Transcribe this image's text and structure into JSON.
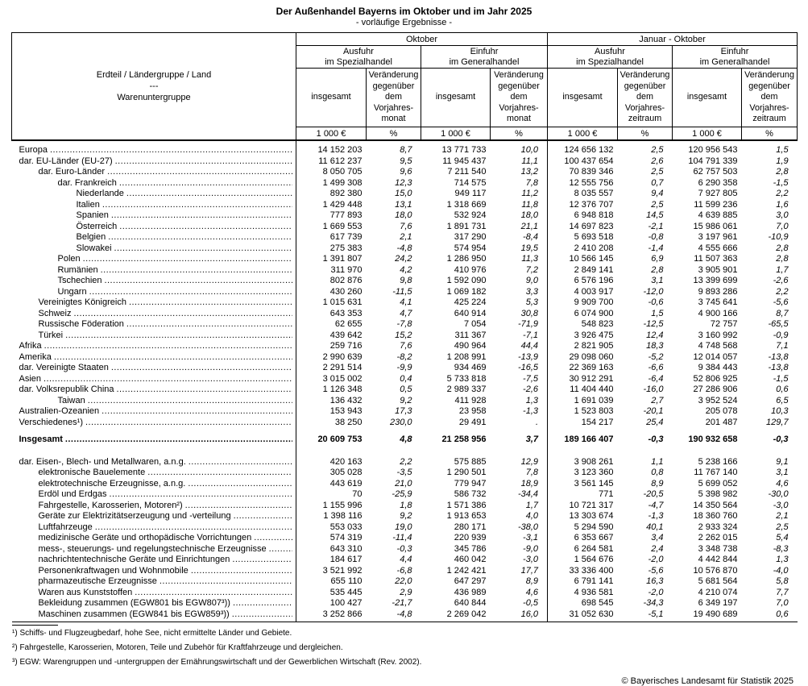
{
  "page": {
    "title": "Der Außenhandel Bayerns im Oktober und im Jahr 2025",
    "subtitle": "- vorläufige Ergebnisse -",
    "copyright": "© Bayerisches Landesamt für Statistik 2025"
  },
  "header": {
    "stub": "Erdteil / Ländergruppe / Land\n---\nWarenuntergruppe",
    "period1": "Oktober",
    "period2": "Januar - Oktober",
    "ausfuhr": "Ausfuhr\nim Spezialhandel",
    "einfuhr": "Einfuhr\nim Generalhandel",
    "insgesamt": "insgesamt",
    "change_month": "Veränderung\ngegenüber\ndem\nVorjahres-\nmonat",
    "change_period": "Veränderung\ngegenüber\ndem\nVorjahres-\nzeitraum",
    "unit_value": "1 000 €",
    "unit_pct": "%"
  },
  "rows": [
    {
      "label": "Europa",
      "indent": 0,
      "values": [
        "14 152 203",
        "8,7",
        "13 771 733",
        "10,0",
        "124 656 132",
        "2,5",
        "120 956 543",
        "1,5"
      ]
    },
    {
      "label": "dar. EU-Länder (EU-27)",
      "indent": 0,
      "values": [
        "11 612 237",
        "9,5",
        "11 945 437",
        "11,1",
        "100 437 654",
        "2,6",
        "104 791 339",
        "1,9"
      ]
    },
    {
      "label": "dar. Euro-Länder",
      "indent": 1,
      "values": [
        "8 050 705",
        "9,6",
        "7 211 540",
        "13,2",
        "70 839 346",
        "2,5",
        "62 757 503",
        "2,8"
      ]
    },
    {
      "label": "dar. Frankreich",
      "indent": 2,
      "values": [
        "1 499 308",
        "12,3",
        "714 575",
        "7,8",
        "12 555 756",
        "0,7",
        "6 290 358",
        "-1,5"
      ]
    },
    {
      "label": "Niederlande",
      "indent": 3,
      "values": [
        "892 380",
        "15,0",
        "949 117",
        "11,2",
        "8 035 557",
        "9,4",
        "7 927 805",
        "2,2"
      ]
    },
    {
      "label": "Italien",
      "indent": 3,
      "values": [
        "1 429 448",
        "13,1",
        "1 318 669",
        "11,8",
        "12 376 707",
        "2,5",
        "11 599 236",
        "1,6"
      ]
    },
    {
      "label": "Spanien",
      "indent": 3,
      "values": [
        "777 893",
        "18,0",
        "532 924",
        "18,0",
        "6 948 818",
        "14,5",
        "4 639 885",
        "3,0"
      ]
    },
    {
      "label": "Österreich",
      "indent": 3,
      "values": [
        "1 669 553",
        "7,6",
        "1 891 731",
        "21,1",
        "14 697 823",
        "-2,1",
        "15 986 061",
        "7,0"
      ]
    },
    {
      "label": "Belgien",
      "indent": 3,
      "values": [
        "617 739",
        "2,1",
        "317 290",
        "-8,4",
        "5 693 518",
        "-0,8",
        "3 197 961",
        "-10,9"
      ]
    },
    {
      "label": "Slowakei",
      "indent": 3,
      "values": [
        "275 383",
        "-4,8",
        "574 954",
        "19,5",
        "2 410 208",
        "-1,4",
        "4 555 666",
        "2,8"
      ]
    },
    {
      "label": "Polen",
      "indent": 2,
      "values": [
        "1 391 807",
        "24,2",
        "1 286 950",
        "11,3",
        "10 566 145",
        "6,9",
        "11 507 363",
        "2,8"
      ]
    },
    {
      "label": "Rumänien",
      "indent": 2,
      "values": [
        "311 970",
        "4,2",
        "410 976",
        "7,2",
        "2 849 141",
        "2,8",
        "3 905 901",
        "1,7"
      ]
    },
    {
      "label": "Tschechien",
      "indent": 2,
      "values": [
        "802 876",
        "9,8",
        "1 592 090",
        "9,0",
        "6 576 196",
        "3,1",
        "13 399 699",
        "-2,6"
      ]
    },
    {
      "label": "Ungarn",
      "indent": 2,
      "values": [
        "430 260",
        "-11,5",
        "1 069 182",
        "3,3",
        "4 003 917",
        "-12,0",
        "9 893 286",
        "2,2"
      ]
    },
    {
      "label": "Vereinigtes Königreich",
      "indent": 1,
      "values": [
        "1 015 631",
        "4,1",
        "425 224",
        "5,3",
        "9 909 700",
        "-0,6",
        "3 745 641",
        "-5,6"
      ]
    },
    {
      "label": "Schweiz",
      "indent": 1,
      "values": [
        "643 353",
        "4,7",
        "640 914",
        "30,8",
        "6 074 900",
        "1,5",
        "4 900 166",
        "8,7"
      ]
    },
    {
      "label": "Russische Föderation",
      "indent": 1,
      "values": [
        "62 655",
        "-7,8",
        "7 054",
        "-71,9",
        "548 823",
        "-12,5",
        "72 757",
        "-65,5"
      ]
    },
    {
      "label": "Türkei",
      "indent": 1,
      "values": [
        "439 642",
        "15,2",
        "311 367",
        "-7,1",
        "3 926 475",
        "12,4",
        "3 160 992",
        "-0,9"
      ]
    },
    {
      "label": "Afrika",
      "indent": 0,
      "values": [
        "259 716",
        "7,6",
        "490 964",
        "44,4",
        "2 821 905",
        "18,3",
        "4 748 568",
        "7,1"
      ]
    },
    {
      "label": "Amerika",
      "indent": 0,
      "values": [
        "2 990 639",
        "-8,2",
        "1 208 991",
        "-13,9",
        "29 098 060",
        "-5,2",
        "12 014 057",
        "-13,8"
      ]
    },
    {
      "label": "dar. Vereinigte Staaten",
      "indent": 0,
      "values": [
        "2 291 514",
        "-9,9",
        "934 469",
        "-16,5",
        "22 369 163",
        "-6,6",
        "9 384 443",
        "-13,8"
      ]
    },
    {
      "label": "Asien",
      "indent": 0,
      "values": [
        "3 015 002",
        "0,4",
        "5 733 818",
        "-7,5",
        "30 912 291",
        "-6,4",
        "52 806 925",
        "-1,5"
      ]
    },
    {
      "label": "dar. Volksrepublik China",
      "indent": 0,
      "values": [
        "1 126 348",
        "0,5",
        "2 989 337",
        "-2,6",
        "11 404 440",
        "-16,0",
        "27 286 906",
        "0,6"
      ]
    },
    {
      "label": "Taiwan",
      "indent": 2,
      "values": [
        "136 432",
        "9,2",
        "411 928",
        "1,3",
        "1 691 039",
        "2,7",
        "3 952 524",
        "6,5"
      ]
    },
    {
      "label": "Australien-Ozeanien",
      "indent": 0,
      "values": [
        "153 943",
        "17,3",
        "23 958",
        "-1,3",
        "1 523 803",
        "-20,1",
        "205 078",
        "10,3"
      ]
    },
    {
      "label": "Verschiedenes¹)",
      "indent": 0,
      "values": [
        "38 250",
        "230,0",
        "29 491",
        ".",
        "154 217",
        "25,4",
        "201 487",
        "129,7"
      ]
    },
    {
      "label": "Insgesamt",
      "indent": 0,
      "bold": true,
      "gap": "sm",
      "values": [
        "20 609 753",
        "4,8",
        "21 258 956",
        "3,7",
        "189 166 407",
        "-0,3",
        "190 932 658",
        "-0,3"
      ]
    },
    {
      "label": "dar. Eisen-, Blech- und Metallwaren, a.n.g.",
      "indent": 0,
      "gap": "lg",
      "values": [
        "420 163",
        "2,2",
        "575 885",
        "12,9",
        "3 908 261",
        "1,1",
        "5 238 166",
        "9,1"
      ]
    },
    {
      "label": "elektronische Bauelemente",
      "indent": 1,
      "values": [
        "305 028",
        "-3,5",
        "1 290 501",
        "7,8",
        "3 123 360",
        "0,8",
        "11 767 140",
        "3,1"
      ]
    },
    {
      "label": "elektrotechnische Erzeugnisse, a.n.g.",
      "indent": 1,
      "values": [
        "443 619",
        "21,0",
        "779 947",
        "18,9",
        "3 561 145",
        "8,9",
        "5 699 052",
        "4,6"
      ]
    },
    {
      "label": "Erdöl und Erdgas",
      "indent": 1,
      "values": [
        "70",
        "-25,9",
        "586 732",
        "-34,4",
        "771",
        "-20,5",
        "5 398 982",
        "-30,0"
      ]
    },
    {
      "label": "Fahrgestelle, Karosserien, Motoren²)",
      "indent": 1,
      "values": [
        "1 155 996",
        "1,8",
        "1 571 386",
        "1,7",
        "10 721 317",
        "-4,7",
        "14 350 564",
        "-3,0"
      ]
    },
    {
      "label": "Geräte zur Elektrizitätserzeugung und -verteilung",
      "indent": 1,
      "values": [
        "1 398 116",
        "9,2",
        "1 913 653",
        "4,0",
        "13 303 674",
        "-1,3",
        "18 360 760",
        "2,1"
      ]
    },
    {
      "label": "Luftfahrzeuge",
      "indent": 1,
      "values": [
        "553 033",
        "19,0",
        "280 171",
        "-38,0",
        "5 294 590",
        "40,1",
        "2 933 324",
        "2,5"
      ]
    },
    {
      "label": "medizinische Geräte und orthopädische Vorrichtungen",
      "indent": 1,
      "values": [
        "574 319",
        "-11,4",
        "220 939",
        "-3,1",
        "6 353 667",
        "3,4",
        "2 262 015",
        "5,4"
      ]
    },
    {
      "label": "mess-, steuerungs- und regelungstechnische Erzeugnisse",
      "indent": 1,
      "values": [
        "643 310",
        "-0,3",
        "345 786",
        "-9,0",
        "6 264 581",
        "2,4",
        "3 348 738",
        "-8,3"
      ]
    },
    {
      "label": "nachrichtentechnische Geräte und Einrichtungen",
      "indent": 1,
      "values": [
        "184 617",
        "4,4",
        "460 042",
        "-3,0",
        "1 564 676",
        "-2,0",
        "4 442 844",
        "1,3"
      ]
    },
    {
      "label": "Personenkraftwagen und Wohnmobile",
      "indent": 1,
      "values": [
        "3 521 992",
        "-6,8",
        "1 242 421",
        "17,7",
        "33 336 400",
        "-5,6",
        "10 576 870",
        "-4,0"
      ]
    },
    {
      "label": "pharmazeutische Erzeugnisse",
      "indent": 1,
      "values": [
        "655 110",
        "22,0",
        "647 297",
        "8,9",
        "6 791 141",
        "16,3",
        "5 681 564",
        "5,8"
      ]
    },
    {
      "label": "Waren aus Kunststoffen",
      "indent": 1,
      "values": [
        "535 445",
        "2,9",
        "436 989",
        "4,6",
        "4 936 581",
        "-2,0",
        "4 210 074",
        "7,7"
      ]
    },
    {
      "label": "Bekleidung zusammen (EGW801 bis EGW807³))",
      "indent": 1,
      "values": [
        "100 427",
        "-21,7",
        "640 844",
        "-0,5",
        "698 545",
        "-34,3",
        "6 349 197",
        "7,0"
      ]
    },
    {
      "label": "Maschinen zusammen (EGW841 bis EGW859³))",
      "indent": 1,
      "values": [
        "3 252 866",
        "-4,8",
        "2 269 042",
        "16,0",
        "31 052 630",
        "-5,1",
        "19 490 689",
        "0,6"
      ]
    }
  ],
  "footnotes": [
    "¹) Schiffs- und Flugzeugbedarf, hohe See, nicht ermittelte Länder und Gebiete.",
    "²) Fahrgestelle, Karosserien, Motoren, Teile und Zubehör für Kraftfahrzeuge und dergleichen.",
    "³) EGW: Warengruppen und -untergruppen der Ernährungswirtschaft und der Gewerblichen Wirtschaft (Rev. 2002)."
  ]
}
